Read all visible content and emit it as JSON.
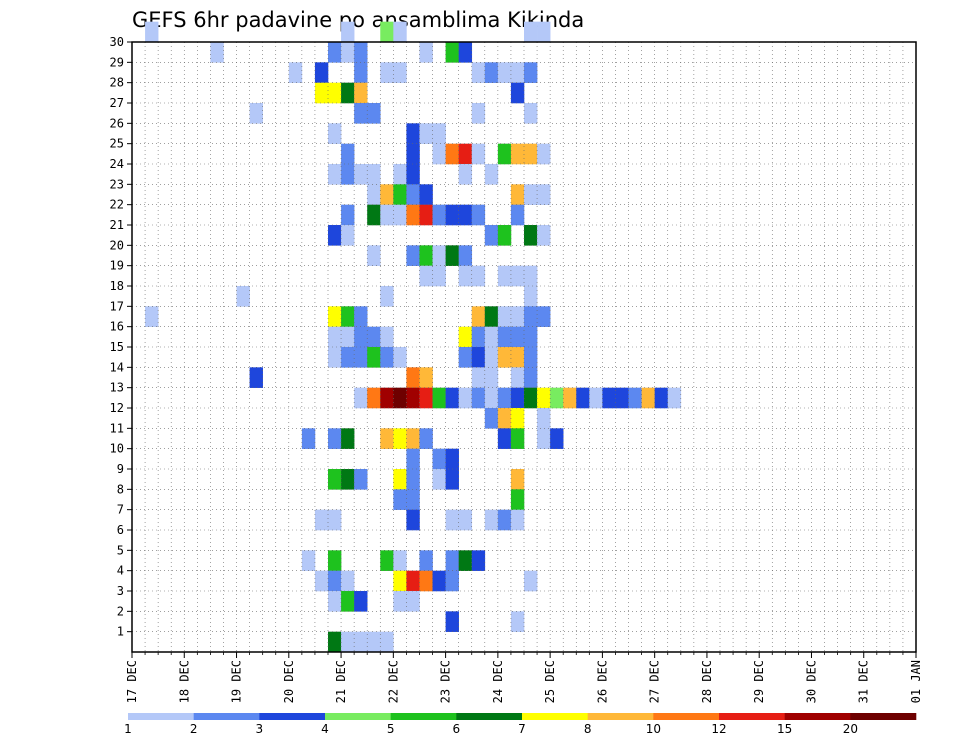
{
  "chart_data": {
    "type": "heatmap",
    "title": "GEFS 6hr padavine po ansamblima Kikinda",
    "xlabel": "",
    "ylabel": "",
    "x_tick_labels": [
      "17 DEC",
      "18 DEC",
      "19 DEC",
      "20 DEC",
      "21 DEC",
      "22 DEC",
      "23 DEC",
      "24 DEC",
      "25 DEC",
      "26 DEC",
      "27 DEC",
      "28 DEC",
      "29 DEC",
      "30 DEC",
      "31 DEC",
      "01 JAN"
    ],
    "y_tick_labels": [
      "1",
      "2",
      "3",
      "4",
      "5",
      "6",
      "7",
      "8",
      "9",
      "10",
      "11",
      "12",
      "13",
      "14",
      "15",
      "16",
      "17",
      "18",
      "19",
      "20",
      "21",
      "22",
      "23",
      "24",
      "25",
      "26",
      "27",
      "28",
      "29",
      "30"
    ],
    "x_range_steps": [
      0,
      60
    ],
    "steps_per_day": 4,
    "y_range_members": [
      0,
      30
    ],
    "grid": true,
    "colorbar": {
      "labels": [
        "1",
        "2",
        "3",
        "4",
        "5",
        "6",
        "7",
        "8",
        "10",
        "12",
        "15",
        "20"
      ],
      "colors": [
        "#b4c8f8",
        "#5c88f0",
        "#1e46dc",
        "#78ec60",
        "#1ec21e",
        "#007814",
        "#ffff00",
        "#ffb838",
        "#ff7814",
        "#e61e14",
        "#a00000",
        "#6e0000"
      ]
    },
    "cells": [
      [
        30,
        1,
        0
      ],
      [
        30,
        16,
        0
      ],
      [
        30,
        19,
        3
      ],
      [
        30,
        20,
        0
      ],
      [
        30,
        30,
        0
      ],
      [
        30,
        31,
        0
      ],
      [
        29,
        6,
        0
      ],
      [
        29,
        15,
        1
      ],
      [
        29,
        16,
        0
      ],
      [
        29,
        17,
        1
      ],
      [
        29,
        22,
        0
      ],
      [
        29,
        24,
        4
      ],
      [
        29,
        25,
        2
      ],
      [
        28,
        12,
        0
      ],
      [
        28,
        14,
        2
      ],
      [
        28,
        17,
        1
      ],
      [
        28,
        19,
        0
      ],
      [
        28,
        20,
        0
      ],
      [
        28,
        26,
        0
      ],
      [
        28,
        27,
        1
      ],
      [
        28,
        28,
        0
      ],
      [
        28,
        29,
        0
      ],
      [
        28,
        30,
        1
      ],
      [
        27,
        14,
        6
      ],
      [
        27,
        15,
        6
      ],
      [
        27,
        16,
        5
      ],
      [
        27,
        17,
        7
      ],
      [
        27,
        29,
        2
      ],
      [
        26,
        9,
        0
      ],
      [
        26,
        17,
        1
      ],
      [
        26,
        18,
        1
      ],
      [
        26,
        26,
        0
      ],
      [
        26,
        30,
        0
      ],
      [
        25,
        15,
        0
      ],
      [
        25,
        21,
        2
      ],
      [
        25,
        22,
        0
      ],
      [
        25,
        23,
        0
      ],
      [
        24,
        16,
        1
      ],
      [
        24,
        21,
        2
      ],
      [
        24,
        23,
        0
      ],
      [
        24,
        24,
        8
      ],
      [
        24,
        25,
        9
      ],
      [
        24,
        26,
        0
      ],
      [
        24,
        28,
        4
      ],
      [
        24,
        29,
        7
      ],
      [
        24,
        30,
        7
      ],
      [
        24,
        31,
        0
      ],
      [
        23,
        15,
        0
      ],
      [
        23,
        16,
        1
      ],
      [
        23,
        17,
        0
      ],
      [
        23,
        18,
        0
      ],
      [
        23,
        20,
        0
      ],
      [
        23,
        21,
        2
      ],
      [
        23,
        25,
        0
      ],
      [
        23,
        27,
        0
      ],
      [
        22,
        18,
        0
      ],
      [
        22,
        19,
        7
      ],
      [
        22,
        20,
        4
      ],
      [
        22,
        21,
        1
      ],
      [
        22,
        22,
        2
      ],
      [
        22,
        29,
        7
      ],
      [
        22,
        30,
        0
      ],
      [
        22,
        31,
        0
      ],
      [
        21,
        16,
        1
      ],
      [
        21,
        18,
        5
      ],
      [
        21,
        19,
        0
      ],
      [
        21,
        20,
        0
      ],
      [
        21,
        21,
        8
      ],
      [
        21,
        22,
        9
      ],
      [
        21,
        23,
        1
      ],
      [
        21,
        24,
        2
      ],
      [
        21,
        25,
        2
      ],
      [
        21,
        26,
        1
      ],
      [
        21,
        29,
        1
      ],
      [
        20,
        15,
        2
      ],
      [
        20,
        16,
        0
      ],
      [
        20,
        27,
        1
      ],
      [
        20,
        28,
        4
      ],
      [
        20,
        30,
        5
      ],
      [
        20,
        31,
        0
      ],
      [
        19,
        18,
        0
      ],
      [
        19,
        21,
        1
      ],
      [
        19,
        22,
        4
      ],
      [
        19,
        23,
        0
      ],
      [
        19,
        24,
        5
      ],
      [
        19,
        25,
        1
      ],
      [
        18,
        22,
        0
      ],
      [
        18,
        23,
        0
      ],
      [
        18,
        25,
        0
      ],
      [
        18,
        26,
        0
      ],
      [
        18,
        28,
        0
      ],
      [
        18,
        29,
        0
      ],
      [
        18,
        30,
        0
      ],
      [
        17,
        8,
        0
      ],
      [
        17,
        19,
        0
      ],
      [
        17,
        30,
        0
      ],
      [
        16,
        1,
        0
      ],
      [
        16,
        15,
        6
      ],
      [
        16,
        16,
        4
      ],
      [
        16,
        17,
        1
      ],
      [
        16,
        26,
        7
      ],
      [
        16,
        27,
        5
      ],
      [
        16,
        28,
        0
      ],
      [
        16,
        29,
        0
      ],
      [
        16,
        30,
        1
      ],
      [
        16,
        31,
        1
      ],
      [
        15,
        15,
        0
      ],
      [
        15,
        16,
        0
      ],
      [
        15,
        17,
        1
      ],
      [
        15,
        18,
        1
      ],
      [
        15,
        19,
        0
      ],
      [
        15,
        25,
        6
      ],
      [
        15,
        26,
        1
      ],
      [
        15,
        27,
        0
      ],
      [
        15,
        28,
        1
      ],
      [
        15,
        29,
        1
      ],
      [
        15,
        30,
        1
      ],
      [
        14,
        15,
        0
      ],
      [
        14,
        16,
        1
      ],
      [
        14,
        17,
        1
      ],
      [
        14,
        18,
        4
      ],
      [
        14,
        19,
        1
      ],
      [
        14,
        20,
        0
      ],
      [
        14,
        25,
        1
      ],
      [
        14,
        26,
        2
      ],
      [
        14,
        27,
        0
      ],
      [
        14,
        28,
        7
      ],
      [
        14,
        29,
        7
      ],
      [
        14,
        30,
        1
      ],
      [
        13,
        9,
        2
      ],
      [
        13,
        21,
        8
      ],
      [
        13,
        22,
        7
      ],
      [
        13,
        26,
        0
      ],
      [
        13,
        27,
        0
      ],
      [
        13,
        29,
        0
      ],
      [
        13,
        30,
        1
      ],
      [
        12,
        17,
        0
      ],
      [
        12,
        18,
        8
      ],
      [
        12,
        19,
        10
      ],
      [
        12,
        20,
        11
      ],
      [
        12,
        21,
        10
      ],
      [
        12,
        22,
        9
      ],
      [
        12,
        23,
        4
      ],
      [
        12,
        24,
        2
      ],
      [
        12,
        25,
        0
      ],
      [
        12,
        26,
        1
      ],
      [
        12,
        27,
        0
      ],
      [
        12,
        28,
        1
      ],
      [
        12,
        29,
        2
      ],
      [
        12,
        30,
        5
      ],
      [
        12,
        31,
        6
      ],
      [
        12,
        32,
        3
      ],
      [
        12,
        33,
        7
      ],
      [
        12,
        34,
        2
      ],
      [
        12,
        35,
        0
      ],
      [
        12,
        36,
        2
      ],
      [
        12,
        37,
        2
      ],
      [
        12,
        38,
        1
      ],
      [
        12,
        39,
        7
      ],
      [
        12,
        40,
        2
      ],
      [
        12,
        41,
        0
      ],
      [
        11,
        27,
        1
      ],
      [
        11,
        28,
        7
      ],
      [
        11,
        29,
        6
      ],
      [
        11,
        31,
        0
      ],
      [
        10,
        13,
        1
      ],
      [
        10,
        15,
        1
      ],
      [
        10,
        16,
        5
      ],
      [
        10,
        19,
        7
      ],
      [
        10,
        20,
        6
      ],
      [
        10,
        21,
        7
      ],
      [
        10,
        22,
        1
      ],
      [
        10,
        28,
        2
      ],
      [
        10,
        29,
        4
      ],
      [
        10,
        31,
        0
      ],
      [
        10,
        32,
        2
      ],
      [
        9,
        21,
        1
      ],
      [
        9,
        23,
        1
      ],
      [
        9,
        24,
        2
      ],
      [
        8,
        15,
        4
      ],
      [
        8,
        16,
        5
      ],
      [
        8,
        17,
        1
      ],
      [
        8,
        20,
        6
      ],
      [
        8,
        21,
        1
      ],
      [
        8,
        23,
        0
      ],
      [
        8,
        24,
        2
      ],
      [
        8,
        29,
        7
      ],
      [
        7,
        20,
        1
      ],
      [
        7,
        21,
        1
      ],
      [
        7,
        29,
        4
      ],
      [
        6,
        14,
        0
      ],
      [
        6,
        15,
        0
      ],
      [
        6,
        21,
        2
      ],
      [
        6,
        24,
        0
      ],
      [
        6,
        25,
        0
      ],
      [
        6,
        27,
        0
      ],
      [
        6,
        28,
        1
      ],
      [
        6,
        29,
        0
      ],
      [
        4,
        13,
        0
      ],
      [
        4,
        15,
        4
      ],
      [
        4,
        19,
        4
      ],
      [
        4,
        20,
        0
      ],
      [
        4,
        22,
        1
      ],
      [
        4,
        24,
        1
      ],
      [
        4,
        25,
        5
      ],
      [
        4,
        26,
        2
      ],
      [
        3,
        14,
        0
      ],
      [
        3,
        15,
        1
      ],
      [
        3,
        16,
        0
      ],
      [
        3,
        20,
        6
      ],
      [
        3,
        21,
        9
      ],
      [
        3,
        22,
        8
      ],
      [
        3,
        23,
        2
      ],
      [
        3,
        24,
        1
      ],
      [
        3,
        30,
        0
      ],
      [
        2,
        15,
        0
      ],
      [
        2,
        16,
        4
      ],
      [
        2,
        17,
        2
      ],
      [
        2,
        20,
        0
      ],
      [
        2,
        21,
        0
      ],
      [
        1,
        24,
        2
      ],
      [
        1,
        29,
        0
      ],
      [
        0,
        15,
        5
      ],
      [
        0,
        16,
        0
      ],
      [
        0,
        17,
        0
      ],
      [
        0,
        18,
        0
      ],
      [
        0,
        19,
        0
      ]
    ]
  }
}
